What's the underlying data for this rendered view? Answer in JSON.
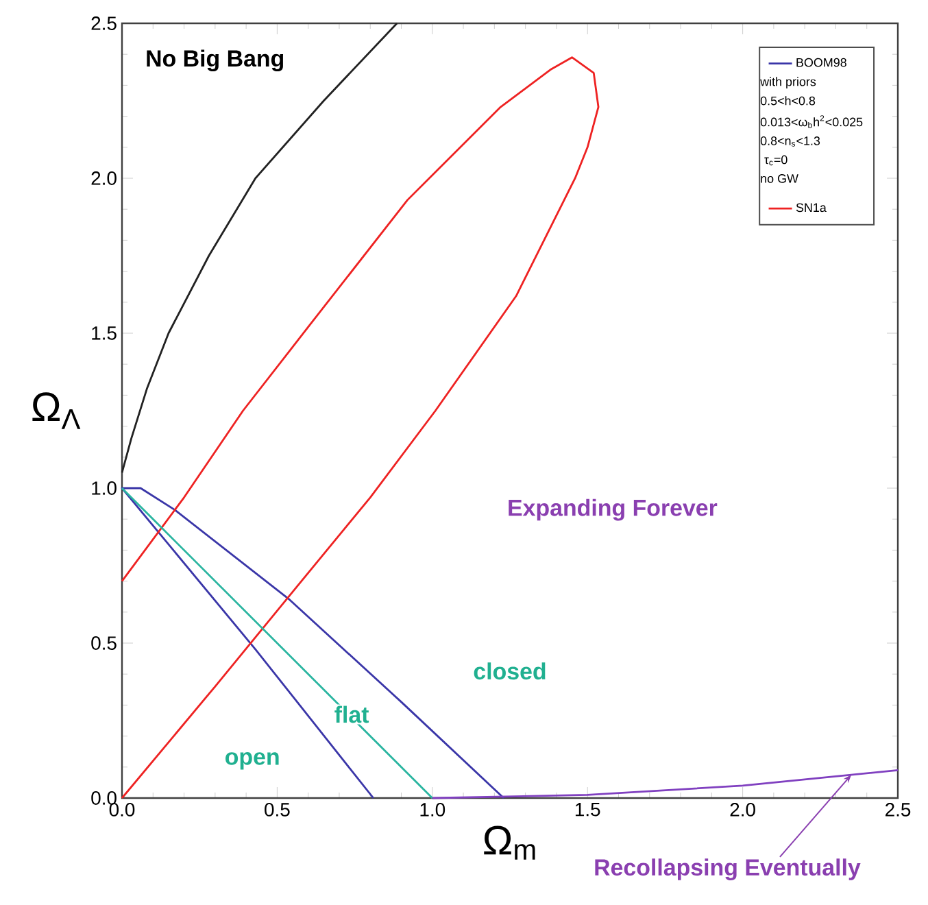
{
  "chart_data": {
    "type": "line",
    "xlabel": "Ω$_{m}$",
    "ylabel": "Ω$_{Λ}$",
    "xlim": [
      0,
      2.5
    ],
    "ylim": [
      0,
      2.5
    ],
    "xticks": [
      {
        "value": 0,
        "label": "0.0"
      },
      {
        "value": 0.5,
        "label": "0.5"
      },
      {
        "value": 1,
        "label": "1.0"
      },
      {
        "value": 1.5,
        "label": "1.5"
      },
      {
        "value": 2,
        "label": "2.0"
      },
      {
        "value": 2.5,
        "label": "2.5"
      }
    ],
    "yticks": [
      {
        "value": 0,
        "label": "0.0"
      },
      {
        "value": 0.5,
        "label": "0.5"
      },
      {
        "value": 1,
        "label": "1.0"
      },
      {
        "value": 1.5,
        "label": "1.5"
      },
      {
        "value": 2,
        "label": "2.0"
      },
      {
        "value": 2.5,
        "label": "2.5"
      }
    ],
    "marker": "none",
    "line_style": "solid",
    "legend": "top right",
    "series": [
      {
        "name": "BOOM98",
        "color": "#3a36a8",
        "x": [
          1.23,
          0.9,
          0.54,
          0.17,
          0.06,
          0,
          0.43,
          0.81
        ],
        "values": [
          0,
          0.31,
          0.64,
          0.93,
          1.0,
          1.0,
          0.48,
          0
        ]
      },
      {
        "name": "SN1a",
        "color": "#ee2222",
        "x": [
          0,
          0.2,
          0.39,
          0.6,
          0.92,
          1.22,
          1.38,
          1.45,
          1.52,
          1.535,
          1.5,
          1.46,
          1.27,
          1.01,
          0.8,
          0.57,
          0.3,
          0
        ],
        "values": [
          0.7,
          0.97,
          1.25,
          1.52,
          1.93,
          2.23,
          2.35,
          2.39,
          2.34,
          2.23,
          2.1,
          2.0,
          1.62,
          1.25,
          0.97,
          0.69,
          0.36,
          0
        ]
      },
      {
        "color": "#222222",
        "x": [
          0,
          0.03,
          0.08,
          0.15,
          0.28,
          0.43,
          0.65,
          0.886
        ],
        "values": [
          1.05,
          1.16,
          1.32,
          1.5,
          1.75,
          2.0,
          2.25,
          2.5
        ]
      },
      {
        "color": "#2ab5a0",
        "x": [
          0,
          1
        ],
        "values": [
          1,
          0
        ]
      },
      {
        "color": "#8040c0",
        "x": [
          1.0,
          1.5,
          2.0,
          2.5
        ],
        "values": [
          0,
          0.01,
          0.04,
          0.09
        ]
      }
    ],
    "annotations": [
      "No Big Bang",
      "Expanding Forever",
      "closed",
      "flat",
      "open",
      {
        "text": "Recollapsing Eventually",
        "x": 2.35,
        "y": 0.075
      },
      "with priors",
      "0.5<h<0.8",
      "0.013<ω$_{b}$h$^{2}$<0.025",
      "0.8<n$_{s}$<1.3",
      "τ$_{c}$=0",
      "no GW"
    ]
  }
}
